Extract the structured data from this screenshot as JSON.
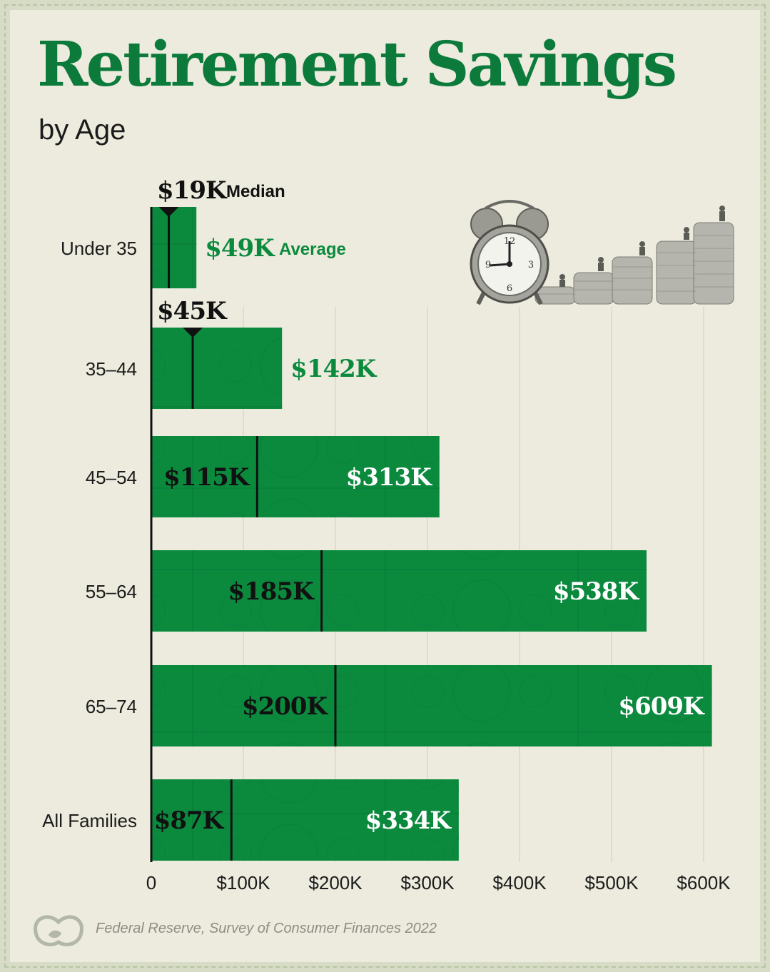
{
  "header": {
    "title": "Retirement Savings",
    "subtitle": "by Age"
  },
  "source": "Federal Reserve, Survey of Consumer Finances 2022",
  "colors": {
    "bar": "#0b8a3e",
    "bar_dark": "#097a36",
    "title": "#0b7a3a",
    "average_label_outside": "#0b8a3e",
    "median_label": "#111111",
    "background": "#ecebdd"
  },
  "icons": {
    "logo": "visual-capitalist-logo-icon",
    "illustration": "alarm-clock-and-coin-stacks-icon"
  },
  "chart_data": {
    "type": "bar",
    "orientation": "horizontal",
    "categories": [
      "Under 35",
      "35–44",
      "45–54",
      "55–64",
      "65–74",
      "All Families"
    ],
    "series": [
      {
        "name": "Average",
        "values": [
          49,
          142,
          313,
          538,
          609,
          334
        ]
      },
      {
        "name": "Median",
        "values": [
          19,
          45,
          115,
          185,
          200,
          87
        ]
      }
    ],
    "value_labels": {
      "average": [
        "$49K",
        "$142K",
        "$313K",
        "$538K",
        "$609K",
        "$334K"
      ],
      "median": [
        "$19K",
        "$45K",
        "$115K",
        "$185K",
        "$200K",
        "$87K"
      ]
    },
    "legend_words": {
      "median": "Median",
      "average": "Average"
    },
    "units": "thousands of USD",
    "xlim": [
      0,
      600
    ],
    "x_ticks": [
      0,
      100,
      200,
      300,
      400,
      500,
      600
    ],
    "x_tick_labels": [
      "0",
      "$100K",
      "$200K",
      "$300K",
      "$400K",
      "$500K",
      "$600K"
    ],
    "grid": "vertical",
    "title": "Retirement Savings",
    "subtitle": "by Age"
  }
}
